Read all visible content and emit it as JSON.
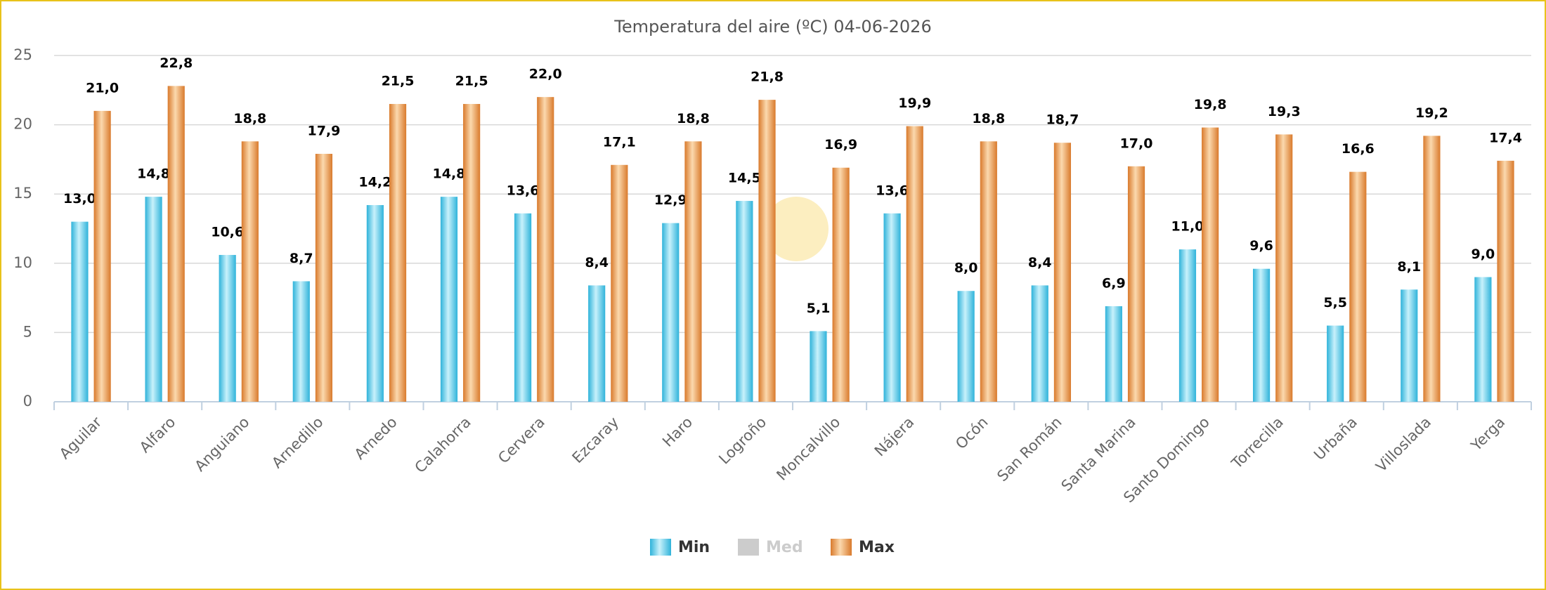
{
  "chart_data": {
    "type": "bar",
    "title": "Temperatura del aire (ºC) 04-06-2026",
    "categories": [
      "Aguilar",
      "Alfaro",
      "Anguiano",
      "Arnedillo",
      "Arnedo",
      "Calahorra",
      "Cervera",
      "Ezcaray",
      "Haro",
      "Logroño",
      "Moncalvillo",
      "Nájera",
      "Ocón",
      "San Román",
      "Santa Marina",
      "Santo Domingo",
      "Torrecilla",
      "Urbaña",
      "Villoslada",
      "Yerga"
    ],
    "series": [
      {
        "name": "Min",
        "color": "#4fc3e3",
        "visible": true,
        "values": [
          13.0,
          14.8,
          10.6,
          8.7,
          14.2,
          14.8,
          13.6,
          8.4,
          12.9,
          14.5,
          5.1,
          13.6,
          8.0,
          8.4,
          6.9,
          11.0,
          9.6,
          5.5,
          8.1,
          9.0
        ],
        "value_labels": [
          "13,0",
          "14,8",
          "10,6",
          "8,7",
          "14,2",
          "14,8",
          "13,6",
          "8,4",
          "12,9",
          "14,5",
          "5,1",
          "13,6",
          "8,0",
          "8,4",
          "6,9",
          "11,0",
          "9,6",
          "5,5",
          "8,1",
          "9,0"
        ]
      },
      {
        "name": "Med",
        "color": "#cccccc",
        "visible": false,
        "values": [
          null,
          null,
          null,
          null,
          null,
          null,
          null,
          null,
          null,
          null,
          null,
          null,
          null,
          null,
          null,
          null,
          null,
          null,
          null,
          null
        ]
      },
      {
        "name": "Max",
        "color": "#e38c3f",
        "visible": true,
        "values": [
          21.0,
          22.8,
          18.8,
          17.9,
          21.5,
          21.5,
          22.0,
          17.1,
          18.8,
          21.8,
          16.9,
          19.9,
          18.8,
          18.7,
          17.0,
          19.8,
          19.3,
          16.6,
          19.2,
          17.4
        ],
        "value_labels": [
          "21,0",
          "22,8",
          "18,8",
          "17,9",
          "21,5",
          "21,5",
          "22,0",
          "17,1",
          "18,8",
          "21,8",
          "16,9",
          "19,9",
          "18,8",
          "18,7",
          "17,0",
          "19,8",
          "19,3",
          "16,6",
          "19,2",
          "17,4"
        ]
      }
    ],
    "ylim": [
      0,
      25
    ],
    "yticks": [
      0,
      5,
      10,
      15,
      20,
      25
    ],
    "grid": true,
    "legend": "bottom"
  }
}
